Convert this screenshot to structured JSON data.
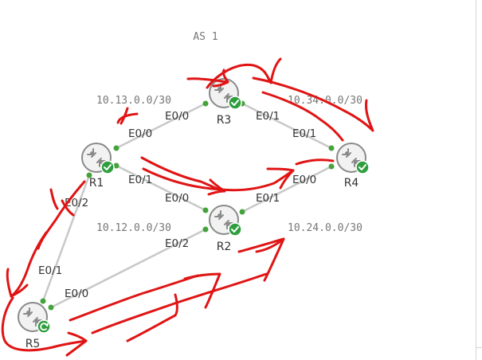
{
  "as_label": "AS 1",
  "colors": {
    "link": "#c8c8c8",
    "port_dot": "#44a33a",
    "router_fill": "#f2f2f2",
    "router_ring": "#8a8a8a",
    "status_ok": "#2e9e3e",
    "annotation": "#e01414",
    "text": "#333333",
    "network_text": "#777777"
  },
  "networks": [
    {
      "id": "n13",
      "label": "10.13.0.0/30"
    },
    {
      "id": "n34",
      "label": "10.34.0.0/30"
    },
    {
      "id": "n12",
      "label": "10.12.0.0/30"
    },
    {
      "id": "n24",
      "label": "10.24.0.0/30"
    }
  ],
  "routers": [
    {
      "id": "r1",
      "label": "R1",
      "status": "running",
      "status_icon": "check-icon"
    },
    {
      "id": "r2",
      "label": "R2",
      "status": "running",
      "status_icon": "check-icon"
    },
    {
      "id": "r3",
      "label": "R3",
      "status": "running",
      "status_icon": "check-icon"
    },
    {
      "id": "r4",
      "label": "R4",
      "status": "running",
      "status_icon": "check-icon"
    },
    {
      "id": "r5",
      "label": "R5",
      "status": "starting",
      "status_icon": "refresh-icon"
    }
  ],
  "links": [
    {
      "id": "r1-r3",
      "a": "r1",
      "b": "r3",
      "a_port": "E0/0",
      "b_port": "E0/0"
    },
    {
      "id": "r3-r4",
      "a": "r3",
      "b": "r4",
      "a_port": "E0/1",
      "b_port": "E0/1"
    },
    {
      "id": "r1-r2",
      "a": "r1",
      "b": "r2",
      "a_port": "E0/1",
      "b_port": "E0/0"
    },
    {
      "id": "r2-r4",
      "a": "r2",
      "b": "r4",
      "a_port": "E0/1",
      "b_port": "E0/0"
    },
    {
      "id": "r1-r5",
      "a": "r1",
      "b": "r5",
      "a_port": "E0/2",
      "b_port": "E0/1"
    },
    {
      "id": "r2-r5",
      "a": "r2",
      "b": "r5",
      "a_port": "E0/2",
      "b_port": "E0/0"
    }
  ]
}
